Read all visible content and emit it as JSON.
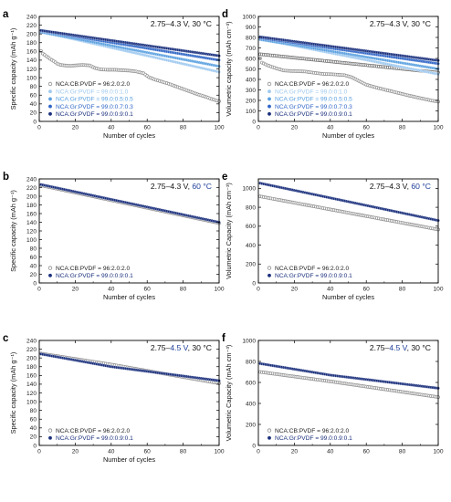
{
  "chart_data": [
    {
      "panel": "a",
      "type": "scatter",
      "condition": {
        "pre": "2.75–4.3 V, 30 ",
        "hl": "",
        "post": "°C"
      },
      "xlabel": "Number of cycles",
      "ylabel": "Specific capacity (mAh g⁻¹)",
      "xlim": [
        0,
        100
      ],
      "ylim": [
        0,
        240
      ],
      "xticks": [
        0,
        20,
        40,
        60,
        80,
        100
      ],
      "yticks": [
        0,
        20,
        40,
        60,
        80,
        100,
        120,
        140,
        160,
        180,
        200,
        220,
        240
      ],
      "x_axis_labels": true,
      "series": [
        {
          "name": "NCA:CB:PVDF = 96:2.0:2.0",
          "color": "#8e8e8e",
          "hollow": true,
          "points": [
            [
              1,
              161
            ],
            [
              2,
              155
            ],
            [
              4,
              149
            ],
            [
              6,
              143
            ],
            [
              8,
              138
            ],
            [
              10,
              132
            ],
            [
              12,
              129
            ],
            [
              14,
              128
            ],
            [
              17,
              127
            ],
            [
              20,
              128
            ],
            [
              24,
              129
            ],
            [
              28,
              128
            ],
            [
              31,
              122
            ],
            [
              34,
              119
            ],
            [
              38,
              118
            ],
            [
              42,
              118
            ],
            [
              46,
              117
            ],
            [
              50,
              116
            ],
            [
              54,
              114
            ],
            [
              58,
              110
            ],
            [
              61,
              101
            ],
            [
              64,
              96
            ],
            [
              68,
              91
            ],
            [
              72,
              86
            ],
            [
              76,
              80
            ],
            [
              80,
              74
            ],
            [
              84,
              68
            ],
            [
              88,
              62
            ],
            [
              92,
              57
            ],
            [
              96,
              51
            ],
            [
              100,
              46
            ]
          ]
        },
        {
          "name": "NCA:Gr:PVDF = 99.0:0:1.0",
          "color": "#9fc9ef",
          "hollow": false,
          "points": [
            [
              1,
              205
            ],
            [
              100,
              113
            ]
          ]
        },
        {
          "name": "NCA:Gr:PVDF = 99.0:0.5:0.5",
          "color": "#5aa0e0",
          "hollow": false,
          "points": [
            [
              1,
              204
            ],
            [
              100,
              126
            ]
          ]
        },
        {
          "name": "NCA:Gr:PVDF = 99.0:0.7:0.3",
          "color": "#2f65c6",
          "hollow": false,
          "points": [
            [
              1,
              207
            ],
            [
              100,
              140
            ]
          ]
        },
        {
          "name": "NCA:Gr:PVDF = 99.0:0.9:0.1",
          "color": "#1a2f7c",
          "hollow": false,
          "points": [
            [
              1,
              208
            ],
            [
              100,
              150
            ]
          ]
        }
      ]
    },
    {
      "panel": "b",
      "type": "scatter",
      "condition": {
        "pre": "2.75–4.3 V, ",
        "hl": "60 °C",
        "post": ""
      },
      "xlabel": "Number of cycles",
      "ylabel": "Specific capacity (mAh g⁻¹)",
      "xlim": [
        0,
        100
      ],
      "ylim": [
        0,
        240
      ],
      "xticks": [
        0,
        20,
        40,
        60,
        80,
        100
      ],
      "yticks": [
        0,
        20,
        40,
        60,
        80,
        100,
        120,
        140,
        160,
        180,
        200,
        220,
        240
      ],
      "x_axis_labels": true,
      "series": [
        {
          "name": "NCA:CB:PVDF = 96:2.0:2.0",
          "color": "#8e8e8e",
          "hollow": true,
          "points": [
            [
              1,
              225
            ],
            [
              100,
              138
            ]
          ]
        },
        {
          "name": "NCA:Gr:PVDF = 99.0:0.9:0.1",
          "color": "#1a2f7c",
          "hollow": false,
          "points": [
            [
              1,
              227
            ],
            [
              100,
              140
            ]
          ]
        }
      ]
    },
    {
      "panel": "c",
      "type": "scatter",
      "condition": {
        "pre": "2.75–",
        "hl": "4.5 V",
        "post": ", 30 °C"
      },
      "xlabel": "Number of cycles",
      "ylabel": "Specific capacity (mAh g⁻¹)",
      "xlim": [
        0,
        100
      ],
      "ylim": [
        0,
        240
      ],
      "xticks": [
        0,
        20,
        40,
        60,
        80,
        100
      ],
      "yticks": [
        0,
        20,
        40,
        60,
        80,
        100,
        120,
        140,
        160,
        180,
        200,
        220,
        240
      ],
      "x_axis_labels": true,
      "series": [
        {
          "name": "NCA:CB:PVDF = 96:2.0:2.0",
          "color": "#8e8e8e",
          "hollow": true,
          "points": [
            [
              1,
              210
            ],
            [
              40,
              185
            ],
            [
              100,
              142
            ]
          ]
        },
        {
          "name": "NCA:Gr:PVDF = 99.0:0.9:0.1",
          "color": "#1a2f7c",
          "hollow": false,
          "points": [
            [
              1,
              209
            ],
            [
              40,
              180
            ],
            [
              100,
              148
            ]
          ]
        }
      ]
    },
    {
      "panel": "d",
      "type": "scatter",
      "condition": {
        "pre": "2.75–4.3 V, 30 ",
        "hl": "",
        "post": "°C"
      },
      "xlabel": "Number of cycles",
      "ylabel": "Volumetric capacity (mAh cm⁻³)",
      "xlim": [
        0,
        100
      ],
      "ylim": [
        0,
        1000
      ],
      "xticks": [
        0,
        20,
        40,
        60,
        80,
        100
      ],
      "yticks": [
        0,
        100,
        200,
        300,
        400,
        500,
        600,
        700,
        800,
        900,
        1000
      ],
      "x_axis_labels": true,
      "series": [
        {
          "name": "NCA:CB:PVDF = 96:2.0:2.0 (lower)",
          "color": "#8e8e8e",
          "hollow": true,
          "points": [
            [
              1,
              600
            ],
            [
              2,
              560
            ],
            [
              5,
              535
            ],
            [
              10,
              505
            ],
            [
              14,
              485
            ],
            [
              18,
              480
            ],
            [
              22,
              478
            ],
            [
              26,
              475
            ],
            [
              30,
              465
            ],
            [
              36,
              452
            ],
            [
              42,
              448
            ],
            [
              48,
              440
            ],
            [
              52,
              420
            ],
            [
              56,
              385
            ],
            [
              60,
              350
            ],
            [
              66,
              320
            ],
            [
              72,
              295
            ],
            [
              78,
              270
            ],
            [
              84,
              245
            ],
            [
              90,
              222
            ],
            [
              96,
              200
            ],
            [
              100,
              188
            ]
          ]
        },
        {
          "name": "NCA:CB:PVDF = 96:2.0:2.0 (upper)",
          "color": "#6e6e6e",
          "hollow": true,
          "points": [
            [
              1,
              640
            ],
            [
              100,
              465
            ]
          ]
        },
        {
          "name": "NCA:Gr:PVDF = 99.0:0:1.0",
          "color": "#9fc9ef",
          "hollow": false,
          "points": [
            [
              1,
              785
            ],
            [
              100,
              450
            ]
          ]
        },
        {
          "name": "NCA:Gr:PVDF = 99.0:0.5:0.5",
          "color": "#5aa0e0",
          "hollow": false,
          "points": [
            [
              1,
              780
            ],
            [
              100,
              500
            ]
          ]
        },
        {
          "name": "NCA:Gr:PVDF = 99.0:0.7:0.3",
          "color": "#2f65c6",
          "hollow": false,
          "points": [
            [
              1,
              795
            ],
            [
              100,
              550
            ]
          ]
        },
        {
          "name": "NCA:Gr:PVDF = 99.0:0.9:0.1",
          "color": "#1a2f7c",
          "hollow": false,
          "points": [
            [
              1,
              805
            ],
            [
              100,
              580
            ]
          ]
        }
      ]
    },
    {
      "panel": "e",
      "type": "scatter",
      "condition": {
        "pre": "2.75–4.3 V, ",
        "hl": "60 °C",
        "post": ""
      },
      "xlabel": "Number of cycles",
      "ylabel": "Volumetric Capacity (mAh cm⁻³)",
      "xlim": [
        0,
        100
      ],
      "ylim": [
        0,
        1100
      ],
      "xticks": [
        0,
        20,
        40,
        60,
        80,
        100
      ],
      "yticks": [
        0,
        200,
        400,
        600,
        800,
        1000
      ],
      "x_axis_labels": true,
      "series": [
        {
          "name": "NCA:CB:PVDF = 96:2.0:2.0",
          "color": "#8e8e8e",
          "hollow": true,
          "points": [
            [
              1,
              915
            ],
            [
              100,
              565
            ]
          ]
        },
        {
          "name": "NCA:Gr:PVDF = 99.0:0.9:0.1",
          "color": "#1a2f7c",
          "hollow": false,
          "points": [
            [
              1,
              1055
            ],
            [
              100,
              660
            ]
          ]
        }
      ]
    },
    {
      "panel": "f",
      "type": "scatter",
      "condition": {
        "pre": "2.75–",
        "hl": "4.5 V",
        "post": ", 30 °C"
      },
      "xlabel": "",
      "ylabel": "Volumetric Capacity (mAh cm⁻³)",
      "xlim": [
        0,
        100
      ],
      "ylim": [
        0,
        1000
      ],
      "xticks": [
        0,
        20,
        40,
        60,
        80,
        100
      ],
      "yticks": [
        0,
        200,
        400,
        600,
        800,
        1000
      ],
      "x_axis_labels": true,
      "series": [
        {
          "name": "NCA:CB:PVDF = 96:2.0:2.0",
          "color": "#8e8e8e",
          "hollow": true,
          "points": [
            [
              1,
              700
            ],
            [
              40,
              610
            ],
            [
              100,
              460
            ]
          ]
        },
        {
          "name": "NCA:Gr:PVDF = 99.0:0.9:0.1",
          "color": "#1a2f7c",
          "hollow": false,
          "points": [
            [
              1,
              780
            ],
            [
              40,
              670
            ],
            [
              100,
              545
            ]
          ]
        }
      ]
    }
  ]
}
